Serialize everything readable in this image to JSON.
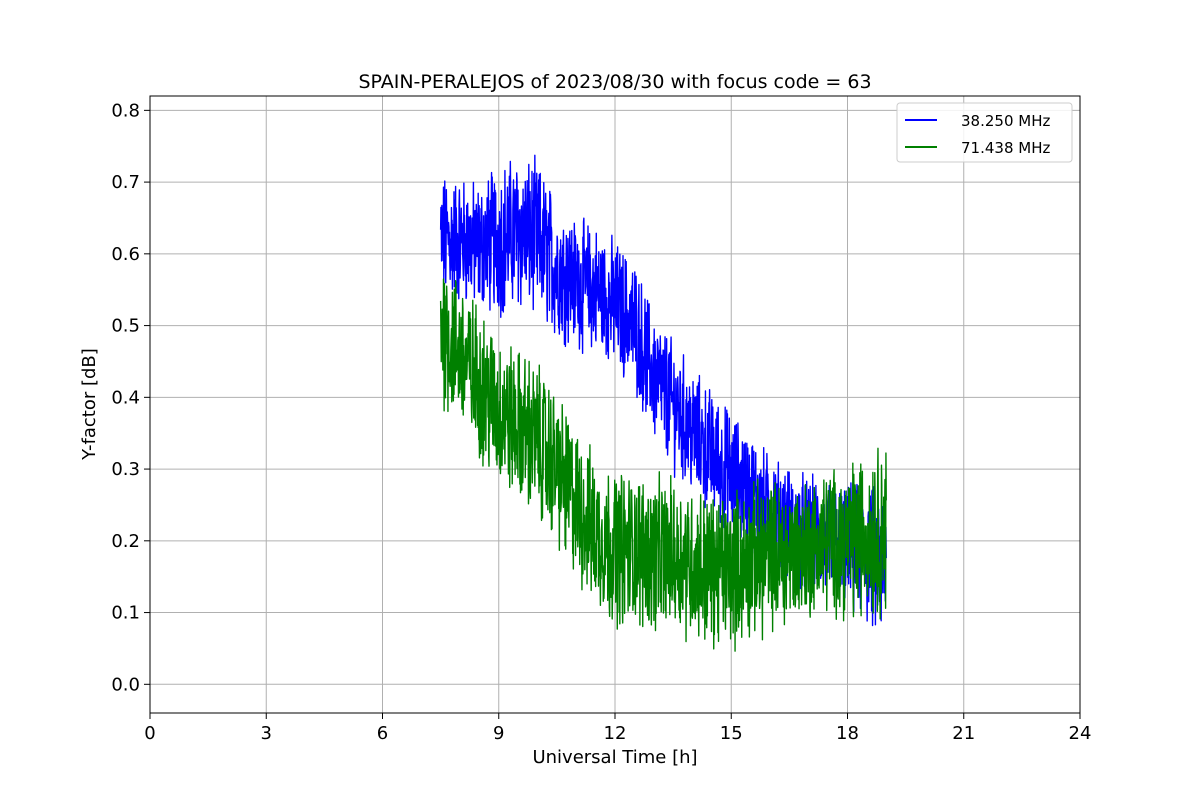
{
  "chart_data": {
    "type": "line",
    "title": "SPAIN-PERALEJOS of 2023/08/30 with focus code = 63",
    "xlabel": "Universal Time [h]",
    "ylabel": "Y-factor [dB]",
    "xlim": [
      0,
      24
    ],
    "ylim": [
      -0.04,
      0.82
    ],
    "xticks": [
      0,
      3,
      6,
      9,
      12,
      15,
      18,
      21,
      24
    ],
    "yticks": [
      0.0,
      0.1,
      0.2,
      0.3,
      0.4,
      0.5,
      0.6,
      0.7,
      0.8
    ],
    "grid": true,
    "legend": "top-right",
    "x": [
      7.5,
      8,
      8.5,
      9,
      9.5,
      10,
      10.5,
      11,
      11.5,
      12,
      12.5,
      13,
      13.5,
      14,
      14.5,
      15,
      15.5,
      16,
      16.5,
      17,
      17.5,
      18,
      18.5,
      19
    ],
    "series": [
      {
        "name": "38.250 MHz",
        "color": "#0000ff",
        "values": [
          0.62,
          0.62,
          0.61,
          0.62,
          0.63,
          0.62,
          0.58,
          0.56,
          0.55,
          0.53,
          0.5,
          0.43,
          0.39,
          0.35,
          0.32,
          0.29,
          0.27,
          0.24,
          0.22,
          0.21,
          0.2,
          0.19,
          0.18,
          0.16
        ],
        "band": [
          0.1,
          0.1,
          0.1,
          0.12,
          0.12,
          0.12,
          0.11,
          0.1,
          0.1,
          0.1,
          0.1,
          0.1,
          0.1,
          0.1,
          0.1,
          0.1,
          0.09,
          0.09,
          0.09,
          0.09,
          0.09,
          0.1,
          0.11,
          0.12
        ]
      },
      {
        "name": "71.438 MHz",
        "color": "#008000",
        "values": [
          0.5,
          0.46,
          0.42,
          0.38,
          0.36,
          0.34,
          0.3,
          0.25,
          0.21,
          0.19,
          0.19,
          0.18,
          0.18,
          0.17,
          0.16,
          0.16,
          0.17,
          0.18,
          0.18,
          0.19,
          0.2,
          0.2,
          0.21,
          0.22
        ],
        "band": [
          0.12,
          0.12,
          0.12,
          0.12,
          0.12,
          0.12,
          0.12,
          0.12,
          0.12,
          0.12,
          0.12,
          0.12,
          0.12,
          0.12,
          0.12,
          0.12,
          0.12,
          0.12,
          0.11,
          0.11,
          0.11,
          0.12,
          0.13,
          0.14
        ]
      }
    ]
  }
}
